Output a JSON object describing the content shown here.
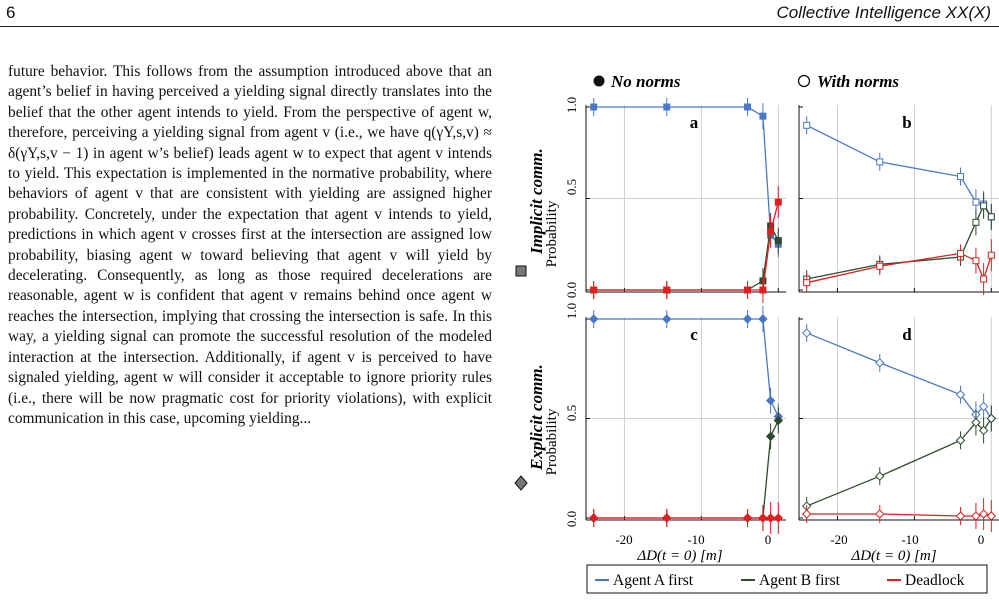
{
  "header": {
    "page_number": "6",
    "journal": "Collective Intelligence XX(X)"
  },
  "body_text": "future behavior. This follows from the assumption introduced above that an agent’s belief in having perceived a yielding signal directly translates into the belief that the other agent intends to yield. From the perspective of agent w, therefore, perceiving a yielding signal from agent v (i.e., we have q(γY,s,v) ≈ δ(γY,s,v − 1) in agent w’s belief) leads agent w to expect that agent v intends to yield. This expectation is implemented in the normative probability, where behaviors of agent v that are consistent with yielding are assigned higher probability. Concretely, under the expectation that agent v intends to yield, predictions in which agent v crosses first at the intersection are assigned low probability, biasing agent w toward believing that agent v will yield by decelerating. Consequently, as long as those required decelerations are reasonable, agent w is confident that agent v remains behind once agent w reaches the intersection, implying that crossing the intersection is safe. In this way, a yielding signal can promote the successful resolution of the modeled interaction at the intersection. Additionally, if agent v is perceived to have signaled yielding, agent w will consider it acceptable to ignore priority rules (i.e., there will be now pragmatic cost for priority violations), with explicit communication in this case, upcoming yielding...",
  "figure": {
    "col_titles": [
      "No norms",
      "With norms"
    ],
    "row_titles": [
      "Implicit comm.",
      "Explicit comm."
    ],
    "ylabel": "Probability",
    "xlabel": "ΔD(t = 0) [m]",
    "yticks": [
      "0.0",
      "0.5",
      "1.0"
    ],
    "xticks": [
      "-20",
      "-10",
      "0"
    ],
    "legend": {
      "a": "Agent A first",
      "b": "Agent B first",
      "d": "Deadlock"
    },
    "colors": {
      "agent_a": "#4a77c8",
      "agent_b": "#2f4a2f",
      "deadlock": "#e02020"
    }
  },
  "chart_data": [
    {
      "panel": "a",
      "type": "line",
      "xlim": [
        -25,
        1
      ],
      "ylim": [
        0,
        1
      ],
      "x": [
        -24,
        -14.5,
        -4,
        -2,
        -1,
        0
      ],
      "series": [
        {
          "name": "Agent A first",
          "values": [
            1.0,
            1.0,
            1.0,
            0.95,
            0.3,
            0.25
          ]
        },
        {
          "name": "Agent B first",
          "values": [
            0.0,
            0.0,
            0.0,
            0.05,
            0.35,
            0.27
          ]
        },
        {
          "name": "Deadlock",
          "values": [
            0.0,
            0.0,
            0.0,
            0.0,
            0.32,
            0.48
          ]
        }
      ]
    },
    {
      "panel": "b",
      "type": "line",
      "xlim": [
        -25,
        1
      ],
      "ylim": [
        0,
        1
      ],
      "x": [
        -24,
        -14.5,
        -4,
        -2,
        -1,
        0
      ],
      "series": [
        {
          "name": "Agent A first",
          "values": [
            0.9,
            0.7,
            0.62,
            0.48,
            0.47,
            0.4
          ]
        },
        {
          "name": "Agent B first",
          "values": [
            0.06,
            0.14,
            0.18,
            0.37,
            0.46,
            0.4
          ]
        },
        {
          "name": "Deadlock",
          "values": [
            0.04,
            0.13,
            0.2,
            0.16,
            0.06,
            0.19
          ]
        }
      ]
    },
    {
      "panel": "c",
      "type": "line",
      "xlim": [
        -25,
        1
      ],
      "ylim": [
        0,
        1
      ],
      "x": [
        -24,
        -14.5,
        -4,
        -2,
        -1,
        0
      ],
      "series": [
        {
          "name": "Agent A first",
          "values": [
            1.0,
            1.0,
            1.0,
            1.0,
            0.59,
            0.51
          ]
        },
        {
          "name": "Agent B first",
          "values": [
            0.0,
            0.0,
            0.0,
            0.0,
            0.41,
            0.49
          ]
        },
        {
          "name": "Deadlock",
          "values": [
            0.0,
            0.0,
            0.0,
            0.0,
            0.0,
            0.0
          ]
        }
      ]
    },
    {
      "panel": "d",
      "type": "line",
      "xlim": [
        -25,
        1
      ],
      "ylim": [
        0,
        1
      ],
      "x": [
        -24,
        -14.5,
        -4,
        -2,
        -1,
        0
      ],
      "series": [
        {
          "name": "Agent A first",
          "values": [
            0.93,
            0.78,
            0.62,
            0.52,
            0.56,
            0.5
          ]
        },
        {
          "name": "Agent B first",
          "values": [
            0.06,
            0.21,
            0.39,
            0.48,
            0.44,
            0.5
          ]
        },
        {
          "name": "Deadlock",
          "values": [
            0.02,
            0.02,
            0.01,
            0.01,
            0.02,
            0.01
          ]
        }
      ]
    }
  ]
}
